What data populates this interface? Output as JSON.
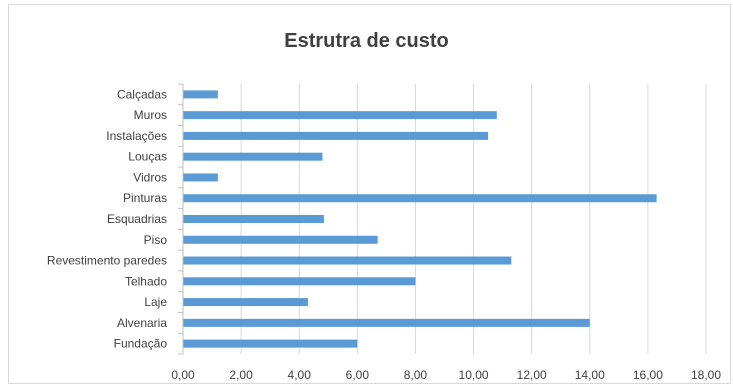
{
  "chart_data": {
    "type": "bar",
    "orientation": "horizontal",
    "title": "Estrutra de custo",
    "categories": [
      "Calçadas",
      "Muros",
      "Instalações",
      "Louças",
      "Vidros",
      "Pinturas",
      "Esquadrias",
      "Piso",
      "Revestimento paredes",
      "Telhado",
      "Laje",
      "Alvenaria",
      "Fundação"
    ],
    "values": [
      1.2,
      10.8,
      10.5,
      4.8,
      1.2,
      16.3,
      4.85,
      6.7,
      11.3,
      8.0,
      4.3,
      14.0,
      6.0
    ],
    "xlim": [
      0,
      18
    ],
    "xticks": [
      "0,00",
      "2,00",
      "4,00",
      "6,00",
      "8,00",
      "10,00",
      "12,00",
      "14,00",
      "16,00",
      "18,00"
    ],
    "grid": "vertical",
    "legend": "none",
    "bar_color": "#5b9bd5",
    "grid_color": "#d9d9d9"
  }
}
